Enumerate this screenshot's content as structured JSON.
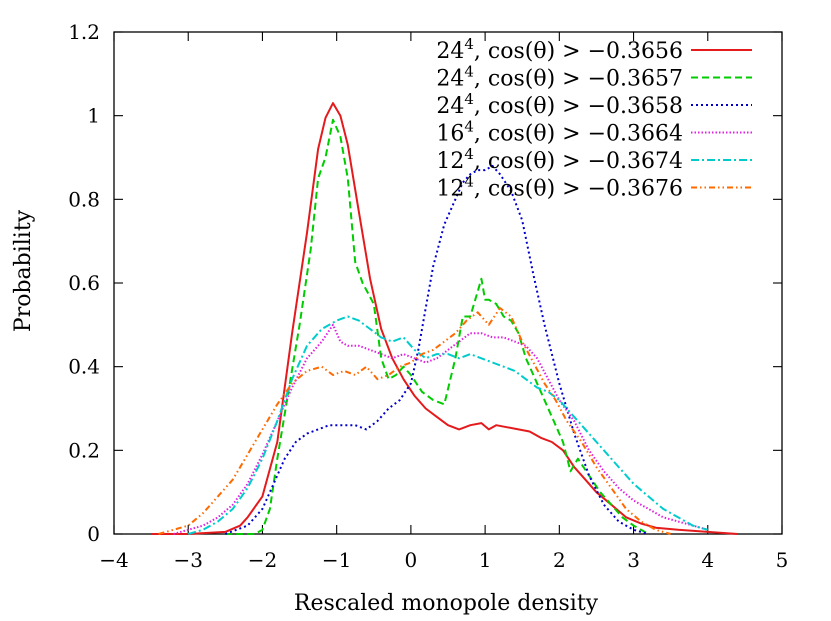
{
  "chart_data": {
    "type": "line",
    "title": "",
    "xlabel": "Rescaled monopole density",
    "ylabel": "Probability",
    "xlim": [
      -4,
      5
    ],
    "ylim": [
      0,
      1.2
    ],
    "xticks": [
      -4,
      -3,
      -2,
      -1,
      0,
      1,
      2,
      3,
      4,
      5
    ],
    "xtick_labels": [
      "−4",
      "−3",
      "−2",
      "−1",
      "0",
      "1",
      "2",
      "3",
      "4",
      "5"
    ],
    "yticks": [
      0,
      0.2,
      0.4,
      0.6,
      0.8,
      1,
      1.2
    ],
    "ytick_labels": [
      "0",
      "0.2",
      "0.4",
      "0.6",
      "0.8",
      "1",
      "1.2"
    ],
    "grid": false,
    "legend_position": "top-right",
    "series": [
      {
        "name": "24⁴, cos(θ) > −0.3656",
        "legend_base": "24",
        "legend_exp": "4",
        "legend_rest": ", cos(θ) > −0.3656",
        "color": "#e41a1c",
        "dash": "",
        "x": [
          -3.5,
          -3.0,
          -2.5,
          -2.3,
          -2.2,
          -2.0,
          -1.8,
          -1.6,
          -1.4,
          -1.25,
          -1.15,
          -1.05,
          -0.95,
          -0.85,
          -0.7,
          -0.55,
          -0.4,
          -0.25,
          -0.1,
          0.05,
          0.2,
          0.35,
          0.5,
          0.65,
          0.8,
          0.95,
          1.05,
          1.15,
          1.3,
          1.45,
          1.6,
          1.75,
          1.9,
          2.05,
          2.2,
          2.35,
          2.5,
          2.7,
          2.9,
          3.1,
          3.3,
          3.6,
          4.0,
          4.4
        ],
        "y": [
          0.0,
          0.0,
          0.005,
          0.02,
          0.04,
          0.09,
          0.22,
          0.48,
          0.72,
          0.92,
          0.995,
          1.03,
          1.0,
          0.93,
          0.77,
          0.61,
          0.49,
          0.42,
          0.37,
          0.33,
          0.3,
          0.28,
          0.26,
          0.25,
          0.26,
          0.265,
          0.25,
          0.26,
          0.255,
          0.25,
          0.245,
          0.23,
          0.22,
          0.2,
          0.16,
          0.13,
          0.1,
          0.07,
          0.04,
          0.025,
          0.015,
          0.01,
          0.005,
          0.0
        ]
      },
      {
        "name": "24⁴, cos(θ) > −0.3657",
        "legend_base": "24",
        "legend_exp": "4",
        "legend_rest": ", cos(θ) > −0.3657",
        "color": "#00cc00",
        "dash": "7,4",
        "x": [
          -2.5,
          -2.1,
          -2.0,
          -1.9,
          -1.8,
          -1.65,
          -1.5,
          -1.35,
          -1.25,
          -1.15,
          -1.05,
          -0.95,
          -0.85,
          -0.75,
          -0.65,
          -0.5,
          -0.4,
          -0.3,
          -0.2,
          -0.1,
          0.0,
          0.15,
          0.3,
          0.45,
          0.6,
          0.7,
          0.8,
          0.9,
          0.95,
          1.0,
          1.05,
          1.15,
          1.25,
          1.35,
          1.45,
          1.55,
          1.65,
          1.8,
          1.95,
          2.05,
          2.15,
          2.25,
          2.4,
          2.55,
          2.7,
          2.85,
          3.0,
          3.1,
          3.2
        ],
        "y": [
          0.0,
          0.0,
          0.01,
          0.06,
          0.18,
          0.34,
          0.5,
          0.68,
          0.85,
          0.9,
          0.99,
          0.95,
          0.85,
          0.65,
          0.6,
          0.55,
          0.42,
          0.37,
          0.38,
          0.4,
          0.38,
          0.34,
          0.32,
          0.31,
          0.42,
          0.52,
          0.52,
          0.58,
          0.61,
          0.56,
          0.56,
          0.55,
          0.52,
          0.51,
          0.48,
          0.42,
          0.38,
          0.32,
          0.26,
          0.22,
          0.15,
          0.18,
          0.14,
          0.1,
          0.07,
          0.04,
          0.02,
          0.01,
          0.0
        ]
      },
      {
        "name": "24⁴, cos(θ) > −0.3658",
        "legend_base": "24",
        "legend_exp": "4",
        "legend_rest": ", cos(θ) > −0.3658",
        "color": "#0000cc",
        "dash": "2,3",
        "x": [
          -2.5,
          -2.2,
          -2.0,
          -1.85,
          -1.7,
          -1.55,
          -1.4,
          -1.25,
          -1.1,
          -0.9,
          -0.75,
          -0.6,
          -0.45,
          -0.3,
          -0.15,
          0.0,
          0.1,
          0.2,
          0.3,
          0.45,
          0.6,
          0.7,
          0.8,
          0.9,
          1.0,
          1.1,
          1.2,
          1.35,
          1.5,
          1.65,
          1.8,
          2.0,
          2.2,
          2.4,
          2.6,
          2.8,
          3.0,
          3.2
        ],
        "y": [
          0.0,
          0.02,
          0.06,
          0.12,
          0.18,
          0.22,
          0.24,
          0.25,
          0.26,
          0.26,
          0.26,
          0.25,
          0.27,
          0.3,
          0.32,
          0.36,
          0.44,
          0.54,
          0.64,
          0.74,
          0.8,
          0.84,
          0.86,
          0.87,
          0.87,
          0.88,
          0.86,
          0.82,
          0.75,
          0.62,
          0.5,
          0.36,
          0.24,
          0.14,
          0.07,
          0.03,
          0.01,
          0.0
        ]
      },
      {
        "name": "16⁴, cos(θ) > −0.3664",
        "legend_base": "16",
        "legend_exp": "4",
        "legend_rest": ", cos(θ) > −0.3664",
        "color": "#e020e0",
        "dash": "1.5,2",
        "x": [
          -3.2,
          -3.0,
          -2.8,
          -2.6,
          -2.4,
          -2.2,
          -2.0,
          -1.8,
          -1.6,
          -1.4,
          -1.2,
          -1.05,
          -0.95,
          -0.85,
          -0.7,
          -0.55,
          -0.4,
          -0.25,
          -0.1,
          0.05,
          0.2,
          0.35,
          0.5,
          0.65,
          0.8,
          0.95,
          1.1,
          1.25,
          1.4,
          1.55,
          1.7,
          1.85,
          2.0,
          2.2,
          2.4,
          2.6,
          2.8,
          3.0,
          3.2,
          3.4,
          3.6,
          3.8,
          4.0
        ],
        "y": [
          0.0,
          0.01,
          0.02,
          0.04,
          0.07,
          0.12,
          0.19,
          0.27,
          0.35,
          0.42,
          0.46,
          0.5,
          0.46,
          0.45,
          0.45,
          0.44,
          0.43,
          0.42,
          0.43,
          0.42,
          0.41,
          0.42,
          0.44,
          0.46,
          0.48,
          0.48,
          0.47,
          0.47,
          0.46,
          0.45,
          0.42,
          0.37,
          0.32,
          0.27,
          0.2,
          0.15,
          0.11,
          0.08,
          0.06,
          0.04,
          0.03,
          0.02,
          0.01
        ]
      },
      {
        "name": "12⁴, cos(θ) > −0.3674",
        "legend_base": "12",
        "legend_exp": "4",
        "legend_rest": ", cos(θ) > −0.3674",
        "color": "#00cccc",
        "dash": "8,3,2,3",
        "x": [
          -3.0,
          -2.8,
          -2.6,
          -2.4,
          -2.2,
          -2.0,
          -1.8,
          -1.6,
          -1.4,
          -1.2,
          -1.0,
          -0.85,
          -0.7,
          -0.55,
          -0.4,
          -0.25,
          -0.1,
          0.05,
          0.2,
          0.35,
          0.5,
          0.65,
          0.8,
          0.95,
          1.1,
          1.25,
          1.4,
          1.55,
          1.7,
          1.85,
          2.0,
          2.2,
          2.4,
          2.6,
          2.8,
          3.0,
          3.2,
          3.4,
          3.6,
          3.8,
          4.0
        ],
        "y": [
          0.0,
          0.01,
          0.03,
          0.06,
          0.11,
          0.18,
          0.27,
          0.37,
          0.45,
          0.49,
          0.51,
          0.52,
          0.51,
          0.49,
          0.47,
          0.46,
          0.47,
          0.44,
          0.42,
          0.43,
          0.43,
          0.42,
          0.43,
          0.42,
          0.41,
          0.4,
          0.39,
          0.37,
          0.35,
          0.34,
          0.32,
          0.28,
          0.24,
          0.2,
          0.16,
          0.12,
          0.09,
          0.06,
          0.04,
          0.02,
          0.01
        ]
      },
      {
        "name": "12⁴, cos(θ) > −0.3676",
        "legend_base": "12",
        "legend_exp": "4",
        "legend_rest": ", cos(θ) > −0.3676",
        "color": "#ff6a00",
        "dash": "6,3,1.5,3,1.5,3",
        "x": [
          -3.4,
          -3.2,
          -3.0,
          -2.8,
          -2.6,
          -2.4,
          -2.2,
          -2.0,
          -1.8,
          -1.6,
          -1.4,
          -1.2,
          -1.05,
          -0.9,
          -0.75,
          -0.6,
          -0.45,
          -0.3,
          -0.15,
          0.0,
          0.15,
          0.3,
          0.45,
          0.6,
          0.75,
          0.9,
          1.05,
          1.2,
          1.35,
          1.5,
          1.65,
          1.8,
          1.95,
          2.1,
          2.3,
          2.5,
          2.7,
          2.9,
          3.1,
          3.3,
          3.5
        ],
        "y": [
          0.0,
          0.01,
          0.02,
          0.05,
          0.09,
          0.13,
          0.19,
          0.25,
          0.31,
          0.36,
          0.39,
          0.4,
          0.38,
          0.39,
          0.38,
          0.4,
          0.37,
          0.38,
          0.4,
          0.41,
          0.43,
          0.44,
          0.46,
          0.48,
          0.51,
          0.53,
          0.5,
          0.54,
          0.52,
          0.46,
          0.41,
          0.36,
          0.32,
          0.27,
          0.22,
          0.16,
          0.11,
          0.06,
          0.03,
          0.01,
          0.0
        ]
      }
    ]
  }
}
